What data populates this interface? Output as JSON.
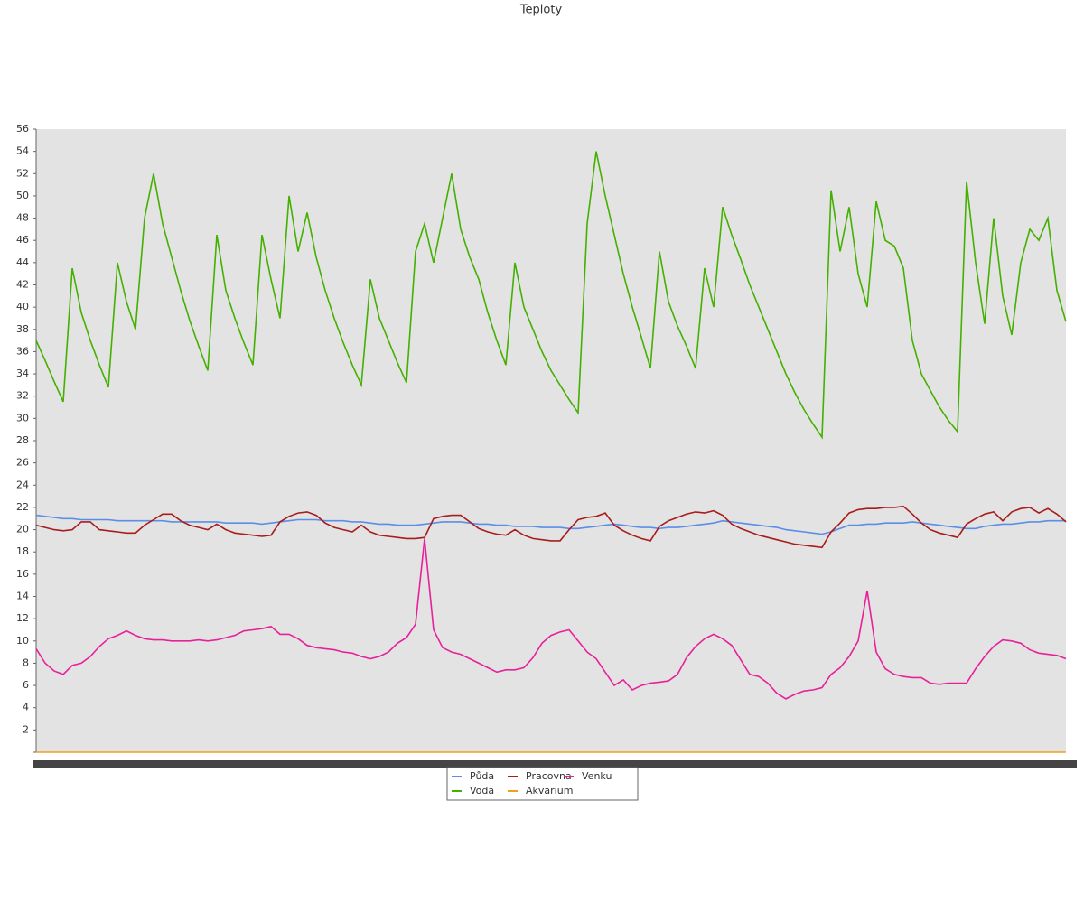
{
  "chart_data": {
    "type": "line",
    "title": "Teploty",
    "ylim": [
      0,
      56
    ],
    "yticks": [
      2,
      4,
      6,
      8,
      10,
      12,
      14,
      16,
      18,
      20,
      22,
      24,
      26,
      28,
      30,
      32,
      34,
      36,
      38,
      40,
      42,
      44,
      46,
      48,
      50,
      52,
      54,
      56
    ],
    "legend": "bottom",
    "series": [
      {
        "name": "Půda",
        "color": "#5b8ee6",
        "values": [
          21.3,
          21.2,
          21.1,
          21.0,
          21.0,
          20.9,
          20.9,
          20.9,
          20.9,
          20.8,
          20.8,
          20.8,
          20.8,
          20.8,
          20.8,
          20.7,
          20.7,
          20.7,
          20.7,
          20.7,
          20.7,
          20.6,
          20.6,
          20.6,
          20.6,
          20.5,
          20.6,
          20.7,
          20.8,
          20.9,
          20.9,
          20.9,
          20.8,
          20.8,
          20.8,
          20.7,
          20.7,
          20.6,
          20.5,
          20.5,
          20.4,
          20.4,
          20.4,
          20.5,
          20.6,
          20.7,
          20.7,
          20.7,
          20.6,
          20.5,
          20.5,
          20.4,
          20.4,
          20.3,
          20.3,
          20.3,
          20.2,
          20.2,
          20.2,
          20.1,
          20.1,
          20.2,
          20.3,
          20.4,
          20.5,
          20.4,
          20.3,
          20.2,
          20.2,
          20.1,
          20.2,
          20.2,
          20.3,
          20.4,
          20.5,
          20.6,
          20.8,
          20.7,
          20.6,
          20.5,
          20.4,
          20.3,
          20.2,
          20.0,
          19.9,
          19.8,
          19.7,
          19.6,
          19.8,
          20.1,
          20.4,
          20.4,
          20.5,
          20.5,
          20.6,
          20.6,
          20.6,
          20.7,
          20.6,
          20.5,
          20.4,
          20.3,
          20.2,
          20.1,
          20.1,
          20.3,
          20.4,
          20.5,
          20.5,
          20.6,
          20.7,
          20.7,
          20.8,
          20.8,
          20.8
        ]
      },
      {
        "name": "Voda",
        "color": "#44b000",
        "values": [
          37.0,
          35.2,
          33.3,
          31.5,
          43.5,
          39.5,
          37.0,
          34.8,
          32.8,
          44.0,
          40.5,
          38.0,
          48.0,
          52.0,
          47.5,
          44.5,
          41.5,
          38.8,
          36.5,
          34.3,
          46.5,
          41.5,
          39.0,
          36.8,
          34.8,
          46.5,
          42.5,
          39.0,
          50.0,
          45.0,
          48.5,
          44.5,
          41.5,
          39.0,
          36.8,
          34.8,
          33.0,
          42.5,
          39.0,
          37.0,
          35.0,
          33.2,
          45.0,
          47.5,
          44.0,
          48.0,
          52.0,
          47.0,
          44.5,
          42.5,
          39.5,
          37.0,
          34.8,
          44.0,
          40.0,
          38.0,
          36.0,
          34.3,
          33.0,
          31.7,
          30.5,
          47.5,
          54.0,
          50.0,
          46.5,
          43.0,
          40.0,
          37.3,
          34.5,
          45.0,
          40.5,
          38.3,
          36.5,
          34.5,
          43.5,
          40.0,
          49.0,
          46.5,
          44.3,
          42.0,
          40.0,
          38.0,
          36.0,
          34.0,
          32.3,
          30.8,
          29.5,
          28.3,
          50.5,
          45.0,
          49.0,
          43.0,
          40.0,
          49.5,
          46.0,
          45.5,
          43.5,
          37.0,
          34.0,
          32.5,
          31.0,
          29.8,
          28.8,
          51.3,
          44.0,
          38.5,
          48.0,
          41.0,
          37.5,
          44.0,
          47.0,
          46.0,
          48.0,
          41.5,
          38.7
        ]
      },
      {
        "name": "Pracovna",
        "color": "#a81c1c",
        "values": [
          20.4,
          20.2,
          20.0,
          19.9,
          20.0,
          20.7,
          20.7,
          20.0,
          19.9,
          19.8,
          19.7,
          19.7,
          20.4,
          20.9,
          21.4,
          21.4,
          20.8,
          20.4,
          20.2,
          20.0,
          20.5,
          20.0,
          19.7,
          19.6,
          19.5,
          19.4,
          19.5,
          20.7,
          21.2,
          21.5,
          21.6,
          21.3,
          20.6,
          20.2,
          20.0,
          19.8,
          20.4,
          19.8,
          19.5,
          19.4,
          19.3,
          19.2,
          19.2,
          19.3,
          21.0,
          21.2,
          21.3,
          21.3,
          20.7,
          20.1,
          19.8,
          19.6,
          19.5,
          20.0,
          19.5,
          19.2,
          19.1,
          19.0,
          19.0,
          20.0,
          20.9,
          21.1,
          21.2,
          21.5,
          20.4,
          19.9,
          19.5,
          19.2,
          19.0,
          20.3,
          20.8,
          21.1,
          21.4,
          21.6,
          21.5,
          21.7,
          21.3,
          20.5,
          20.1,
          19.8,
          19.5,
          19.3,
          19.1,
          18.9,
          18.7,
          18.6,
          18.5,
          18.4,
          19.8,
          20.6,
          21.5,
          21.8,
          21.9,
          21.9,
          22.0,
          22.0,
          22.1,
          21.4,
          20.6,
          20.0,
          19.7,
          19.5,
          19.3,
          20.5,
          21.0,
          21.4,
          21.6,
          20.8,
          21.6,
          21.9,
          22.0,
          21.5,
          21.9,
          21.4,
          20.7
        ]
      },
      {
        "name": "Akvarium",
        "color": "#f0a020",
        "values": [
          0,
          0,
          0,
          0,
          0,
          0,
          0,
          0,
          0,
          0,
          0,
          0,
          0,
          0,
          0,
          0,
          0,
          0,
          0,
          0,
          0,
          0,
          0,
          0,
          0,
          0,
          0,
          0,
          0,
          0,
          0,
          0,
          0,
          0,
          0,
          0,
          0,
          0,
          0,
          0,
          0,
          0,
          0,
          0,
          0,
          0,
          0,
          0,
          0,
          0,
          0,
          0,
          0,
          0,
          0,
          0,
          0,
          0,
          0,
          0,
          0,
          0,
          0,
          0,
          0,
          0,
          0,
          0,
          0,
          0,
          0,
          0,
          0,
          0,
          0,
          0,
          0,
          0,
          0,
          0,
          0,
          0,
          0,
          0,
          0,
          0,
          0,
          0,
          0,
          0,
          0,
          0,
          0,
          0,
          0,
          0,
          0,
          0,
          0,
          0,
          0,
          0,
          0,
          0,
          0,
          0,
          0,
          0,
          0,
          0,
          0,
          0,
          0,
          0,
          0
        ]
      },
      {
        "name": "Venku",
        "color": "#e8209a",
        "values": [
          9.3,
          8.0,
          7.3,
          7.0,
          7.8,
          8.0,
          8.6,
          9.5,
          10.2,
          10.5,
          10.9,
          10.5,
          10.2,
          10.1,
          10.1,
          10.0,
          10.0,
          10.0,
          10.1,
          10.0,
          10.1,
          10.3,
          10.5,
          10.9,
          11.0,
          11.1,
          11.3,
          10.6,
          10.6,
          10.2,
          9.6,
          9.4,
          9.3,
          9.2,
          9.0,
          8.9,
          8.6,
          8.4,
          8.6,
          9.0,
          9.8,
          10.3,
          11.5,
          19.2,
          11.0,
          9.4,
          9.0,
          8.8,
          8.4,
          8.0,
          7.6,
          7.2,
          7.4,
          7.4,
          7.6,
          8.5,
          9.8,
          10.5,
          10.8,
          11.0,
          10.0,
          9.0,
          8.4,
          7.2,
          6.0,
          6.5,
          5.6,
          6.0,
          6.2,
          6.3,
          6.4,
          7.0,
          8.5,
          9.5,
          10.2,
          10.6,
          10.2,
          9.6,
          8.3,
          7.0,
          6.8,
          6.2,
          5.3,
          4.8,
          5.2,
          5.5,
          5.6,
          5.8,
          7.0,
          7.6,
          8.6,
          10.0,
          14.5,
          9.0,
          7.5,
          7.0,
          6.8,
          6.7,
          6.7,
          6.2,
          6.1,
          6.2,
          6.2,
          6.2,
          7.5,
          8.6,
          9.5,
          10.1,
          10.0,
          9.8,
          9.2,
          8.9,
          8.8,
          8.7,
          8.4
        ]
      }
    ]
  }
}
